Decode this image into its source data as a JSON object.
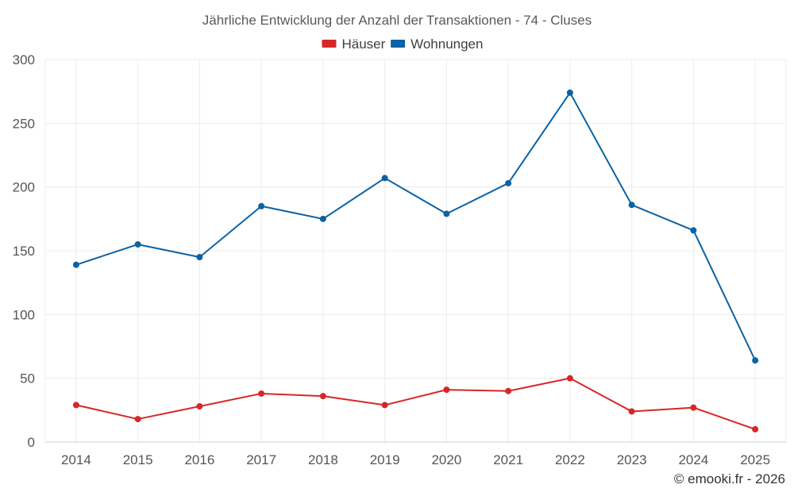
{
  "chart_data": {
    "type": "line",
    "title": "Jährliche Entwicklung der Anzahl der Transaktionen - 74 - Cluses",
    "categories": [
      "2014",
      "2015",
      "2016",
      "2017",
      "2018",
      "2019",
      "2020",
      "2021",
      "2022",
      "2023",
      "2024",
      "2025"
    ],
    "series": [
      {
        "name": "Häuser",
        "color": "#d62728",
        "values": [
          29,
          18,
          28,
          38,
          36,
          29,
          41,
          40,
          50,
          24,
          27,
          10
        ]
      },
      {
        "name": "Wohnungen",
        "color": "#0b62a4",
        "values": [
          139,
          155,
          145,
          185,
          175,
          207,
          179,
          203,
          274,
          186,
          166,
          64
        ]
      }
    ],
    "ylim": [
      0,
      300
    ],
    "yticks": [
      0,
      50,
      100,
      150,
      200,
      250,
      300
    ],
    "xlabel": "",
    "ylabel": "",
    "legend_position": "top-center",
    "grid": true
  },
  "credit": "© emooki.fr - 2026"
}
